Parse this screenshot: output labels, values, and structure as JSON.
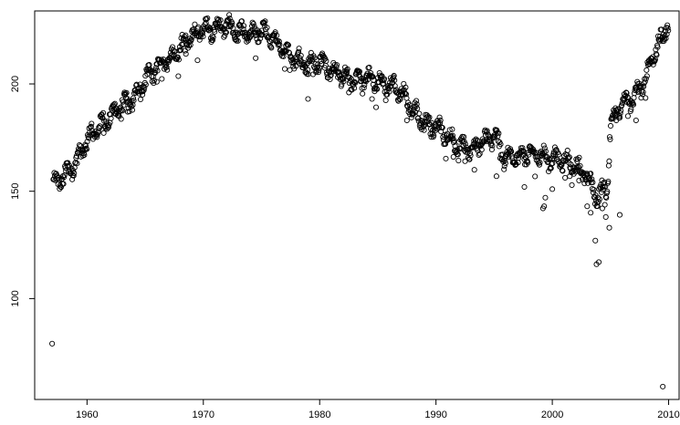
{
  "chart_data": {
    "type": "scatter",
    "title": "",
    "xlabel": "",
    "ylabel": "",
    "xlim": [
      1955.5,
      2010.9
    ],
    "ylim": [
      53,
      234
    ],
    "x_ticks": [
      1960,
      1970,
      1980,
      1990,
      2000,
      2010
    ],
    "y_ticks": [
      100,
      150,
      200
    ],
    "x_tick_labels": [
      "1960",
      "1970",
      "1980",
      "1990",
      "2000",
      "2010"
    ],
    "y_tick_labels": [
      "100",
      "150",
      "200"
    ],
    "grid": false,
    "legend": "none",
    "marker": "open-circle",
    "colors": {
      "marker": "#000000",
      "axis": "#000000",
      "background": "#ffffff"
    },
    "trend": [
      [
        1957.1,
        153
      ],
      [
        1958.0,
        157
      ],
      [
        1959.0,
        163
      ],
      [
        1960.0,
        174
      ],
      [
        1961.0,
        180
      ],
      [
        1962.0,
        185
      ],
      [
        1963.0,
        190
      ],
      [
        1964.0,
        193
      ],
      [
        1965.0,
        202
      ],
      [
        1966.0,
        208
      ],
      [
        1967.0,
        212
      ],
      [
        1968.0,
        217
      ],
      [
        1969.0,
        222
      ],
      [
        1970.0,
        226
      ],
      [
        1971.0,
        226
      ],
      [
        1972.0,
        227
      ],
      [
        1973.0,
        224
      ],
      [
        1974.0,
        223
      ],
      [
        1975.0,
        225
      ],
      [
        1976.0,
        221
      ],
      [
        1977.0,
        216
      ],
      [
        1978.0,
        212
      ],
      [
        1979.0,
        209
      ],
      [
        1980.0,
        210
      ],
      [
        1981.0,
        207
      ],
      [
        1982.0,
        203
      ],
      [
        1983.0,
        202
      ],
      [
        1984.0,
        203
      ],
      [
        1985.0,
        201
      ],
      [
        1986.0,
        200
      ],
      [
        1987.0,
        196
      ],
      [
        1988.0,
        188
      ],
      [
        1989.0,
        182
      ],
      [
        1990.0,
        180
      ],
      [
        1991.0,
        176
      ],
      [
        1992.0,
        171
      ],
      [
        1993.0,
        169
      ],
      [
        1994.0,
        173
      ],
      [
        1995.0,
        176
      ],
      [
        1996.0,
        165
      ],
      [
        1997.0,
        166
      ],
      [
        1998.0,
        168
      ],
      [
        1999.0,
        167
      ],
      [
        2000.0,
        165
      ],
      [
        2001.0,
        164
      ],
      [
        2002.0,
        162
      ],
      [
        2002.8,
        158
      ],
      [
        2003.3,
        153
      ],
      [
        2003.8,
        148
      ],
      [
        2004.3,
        150
      ],
      [
        2004.7,
        152
      ],
      [
        2005.0,
        181
      ],
      [
        2005.5,
        188
      ],
      [
        2006.0,
        190
      ],
      [
        2006.5,
        192
      ],
      [
        2007.0,
        194
      ],
      [
        2007.5,
        197
      ],
      [
        2008.0,
        203
      ],
      [
        2008.5,
        212
      ],
      [
        2009.0,
        217
      ],
      [
        2009.5,
        222
      ],
      [
        2010.0,
        230
      ]
    ],
    "outliers": [
      [
        1957.0,
        79
      ],
      [
        2009.5,
        59
      ],
      [
        2003.7,
        127
      ],
      [
        2003.8,
        116
      ],
      [
        2004.0,
        117
      ],
      [
        2004.6,
        138
      ],
      [
        2004.9,
        133
      ],
      [
        2005.8,
        139
      ],
      [
        1999.2,
        142
      ],
      [
        1999.3,
        143
      ],
      [
        1999.4,
        147
      ],
      [
        2000.0,
        151
      ],
      [
        1997.6,
        152
      ],
      [
        1995.2,
        157
      ],
      [
        1993.3,
        160
      ],
      [
        1987.5,
        183
      ],
      [
        1984.5,
        193
      ],
      [
        1979.0,
        193
      ],
      [
        1977.0,
        207
      ],
      [
        1974.5,
        212
      ],
      [
        1969.5,
        211
      ],
      [
        1968.5,
        214
      ],
      [
        1966.0,
        201
      ],
      [
        1963.5,
        187
      ],
      [
        1962.5,
        186
      ],
      [
        2003.0,
        143
      ],
      [
        2003.3,
        140
      ],
      [
        2004.3,
        142
      ],
      [
        2005.5,
        183
      ],
      [
        2006.5,
        185
      ],
      [
        2007.2,
        183
      ],
      [
        2001.5,
        157
      ],
      [
        2002.3,
        155
      ],
      [
        1992.5,
        164
      ],
      [
        1991.5,
        166
      ]
    ]
  }
}
